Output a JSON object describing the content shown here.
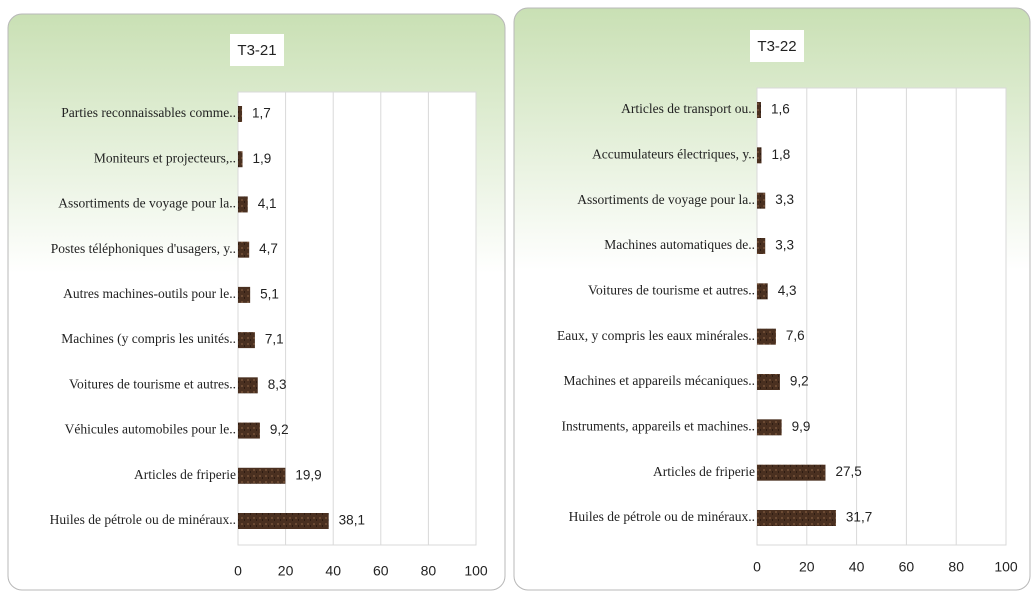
{
  "chart_data": [
    {
      "type": "bar",
      "orientation": "horizontal",
      "title": "T3-21",
      "categories": [
        "Parties reconnaissables comme..",
        "Moniteurs et projecteurs,..",
        "Assortiments de voyage pour la..",
        "Postes téléphoniques d'usagers, y..",
        "Autres machines-outils pour le..",
        "Machines (y compris les unités..",
        "Voitures de tourisme et autres..",
        "Véhicules automobiles pour le..",
        "Articles de friperie",
        "Huiles de pétrole ou de minéraux.."
      ],
      "values": [
        1.7,
        1.9,
        4.1,
        4.7,
        5.1,
        7.1,
        8.3,
        9.2,
        19.9,
        38.1
      ],
      "value_labels": [
        "1,7",
        "1,9",
        "4,1",
        "4,7",
        "5,1",
        "7,1",
        "8,3",
        "9,2",
        "19,9",
        "38,1"
      ],
      "color": "#4a3020",
      "xlim": [
        0,
        100
      ],
      "xticks": [
        0,
        20,
        40,
        60,
        80,
        100
      ],
      "grid": true
    },
    {
      "type": "bar",
      "orientation": "horizontal",
      "title": "T3-22",
      "categories": [
        "Articles de transport ou..",
        "Accumulateurs électriques, y..",
        "Assortiments de voyage pour la..",
        "Machines automatiques de..",
        "Voitures de tourisme et autres..",
        "Eaux, y compris les eaux minérales..",
        "Machines et appareils mécaniques..",
        "Instruments, appareils et machines..",
        "Articles de friperie",
        "Huiles de pétrole ou de minéraux.."
      ],
      "values": [
        1.6,
        1.8,
        3.3,
        3.3,
        4.3,
        7.6,
        9.2,
        9.9,
        27.5,
        31.7
      ],
      "value_labels": [
        "1,6",
        "1,8",
        "3,3",
        "3,3",
        "4,3",
        "7,6",
        "9,2",
        "9,9",
        "27,5",
        "31,7"
      ],
      "color": "#4a3020",
      "xlim": [
        0,
        100
      ],
      "xticks": [
        0,
        20,
        40,
        60,
        80,
        100
      ],
      "grid": true
    }
  ]
}
